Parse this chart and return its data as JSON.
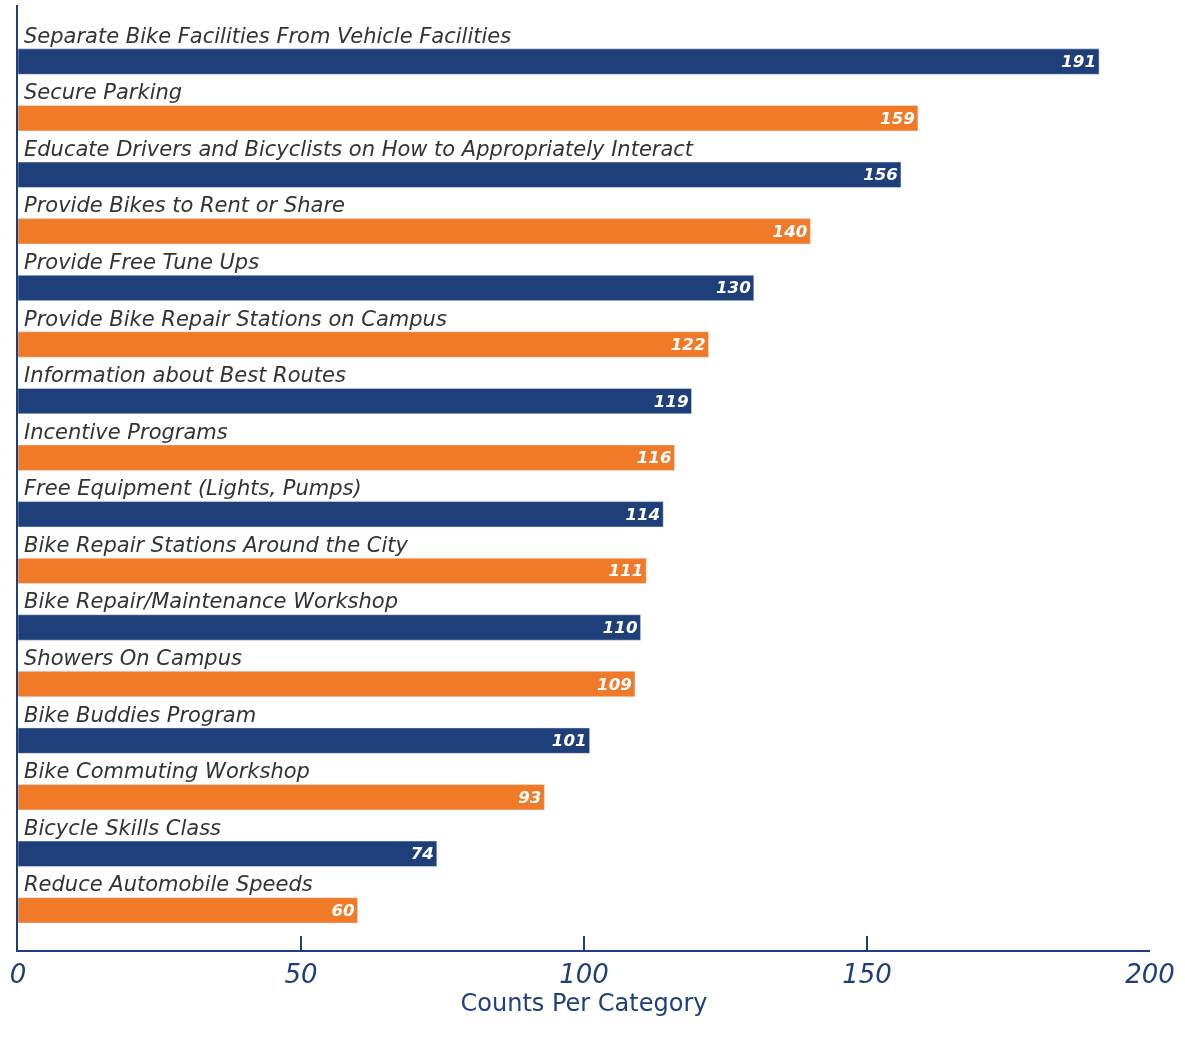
{
  "chart_data": {
    "type": "bar",
    "orientation": "horizontal",
    "xlabel": "Counts Per Category",
    "categories": [
      "Separate Bike Facilities From Vehicle Facilities",
      "Secure Parking",
      "Educate Drivers and Bicyclists on How to Appropriately Interact",
      "Provide Bikes to Rent or Share",
      "Provide Free Tune Ups",
      "Provide Bike Repair Stations on Campus",
      "Information about Best Routes",
      "Incentive Programs",
      "Free Equipment (Lights, Pumps)",
      "Bike Repair Stations Around the City",
      "Bike Repair/Maintenance Workshop",
      "Showers On Campus",
      "Bike Buddies Program",
      "Bike Commuting Workshop",
      "Bicycle Skills Class",
      "Reduce Automobile Speeds"
    ],
    "values": [
      191,
      159,
      156,
      140,
      130,
      122,
      119,
      116,
      114,
      111,
      110,
      109,
      101,
      93,
      74,
      60
    ],
    "colors": [
      "#1f3f7a",
      "#f07a28",
      "#1f3f7a",
      "#f07a28",
      "#1f3f7a",
      "#f07a28",
      "#1f3f7a",
      "#f07a28",
      "#1f3f7a",
      "#f07a28",
      "#1f3f7a",
      "#f07a28",
      "#1f3f7a",
      "#f07a28",
      "#1f3f7a",
      "#f07a28"
    ],
    "xlim": [
      0,
      200
    ],
    "xticks": [
      0,
      50,
      100,
      150,
      200
    ],
    "data_labels": true,
    "legend": false
  }
}
